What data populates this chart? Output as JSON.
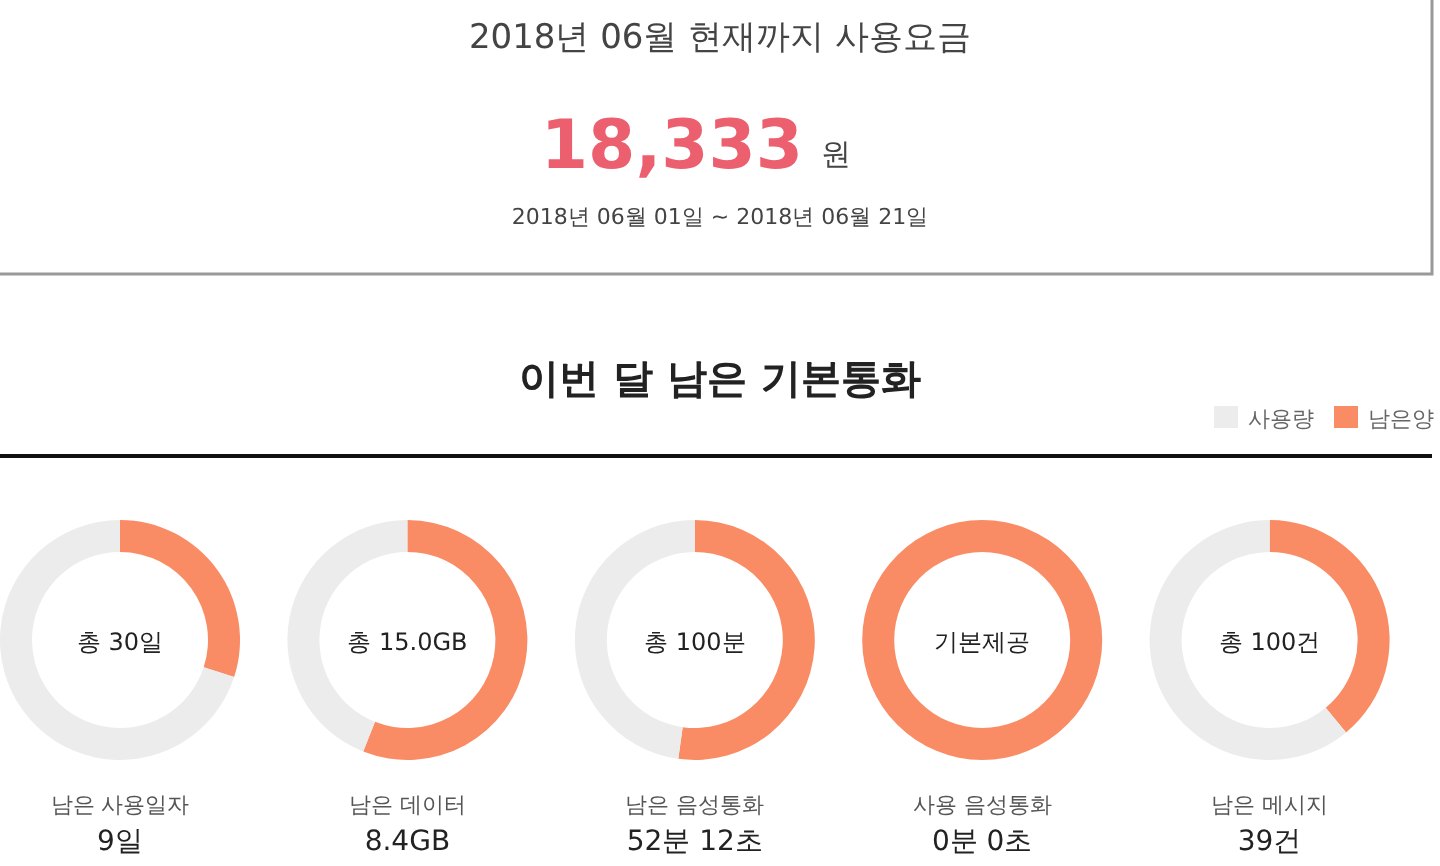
{
  "chart_data": [
    {
      "type": "other",
      "title": "2018년 06월 현재까지 사용요금",
      "annotations": [
        "18,333",
        "원",
        "2018년 06월 01일 ~ 2018년 06월 21일"
      ]
    },
    {
      "type": "other",
      "title": "이번 달 남은 기본통화"
    },
    {
      "type": "donut",
      "categories": [
        "남은양",
        "사용량"
      ],
      "values": [
        30,
        70
      ],
      "colors": [
        "#f98c64",
        "#ececec"
      ],
      "legend": "top right",
      "annotations": [
        "총 30일"
      ],
      "title": "남은 사용일자",
      "subtitle": "9일"
    },
    {
      "type": "donut",
      "categories": [
        null,
        null
      ],
      "values": [
        56,
        44
      ],
      "colors": [
        "#f98c64",
        "#ececec"
      ],
      "annotations": [
        "총 15.0GB"
      ],
      "title": "남은 데이터",
      "subtitle": "8.4GB"
    },
    {
      "type": "donut",
      "categories": [
        null,
        null
      ],
      "values": [
        52.2,
        47.8
      ],
      "colors": [
        "#f98c64",
        "#ececec"
      ],
      "annotations": [
        "총 100분"
      ],
      "title": "남은 음성통화",
      "subtitle": "52분 12초"
    },
    {
      "type": "donut",
      "categories": [
        null,
        null
      ],
      "values": [
        100,
        0
      ],
      "colors": [
        "#f98c64",
        "#ececec"
      ],
      "annotations": [
        "기본제공"
      ],
      "title": "사용 음성통화",
      "subtitle": "0분 0초"
    },
    {
      "type": "donut",
      "categories": [
        null,
        null
      ],
      "values": [
        39,
        61
      ],
      "colors": [
        "#f98c64",
        "#ececec"
      ],
      "annotations": [
        "총 100건"
      ],
      "title": "남은 메시지",
      "subtitle": "39건"
    }
  ]
}
